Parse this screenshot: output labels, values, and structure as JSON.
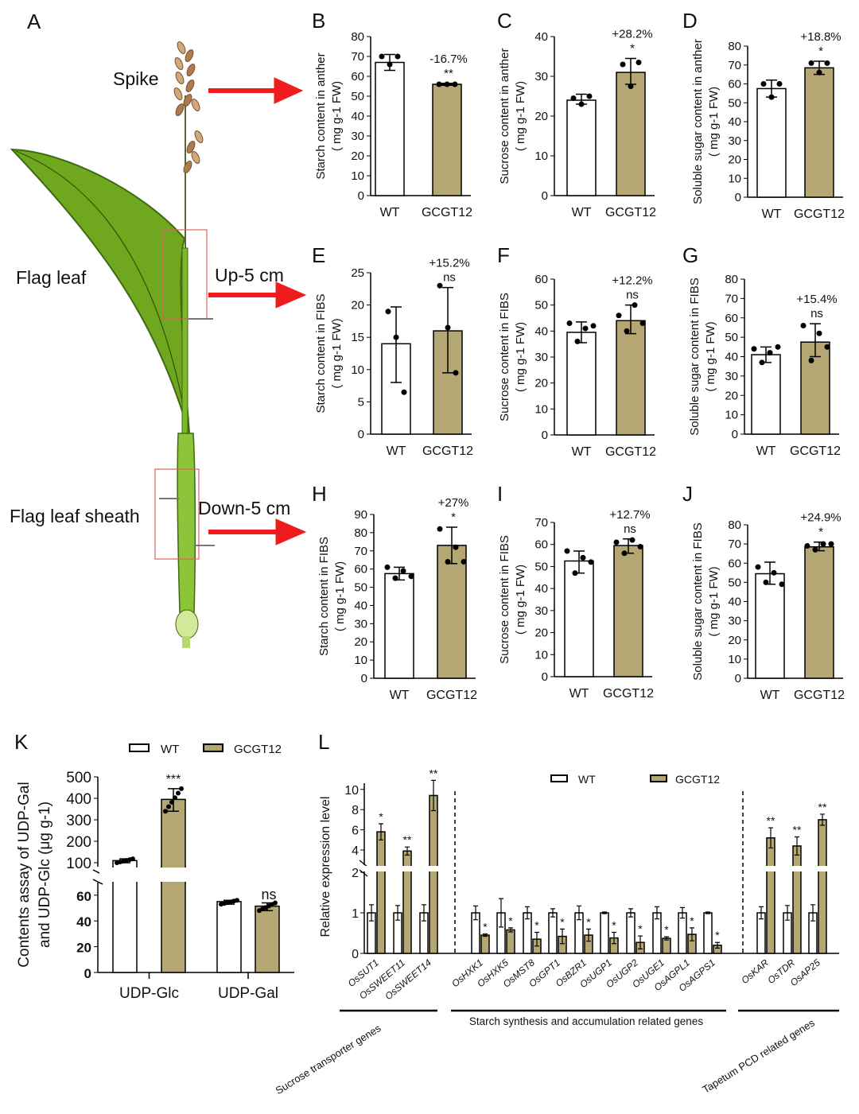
{
  "colors": {
    "wt": "#ffffff",
    "gcgt12": "#b5a773",
    "arrow": "#ee1c1c",
    "box": "#e06060",
    "leaf": "#6fa81e"
  },
  "panel_a": {
    "letter": "A",
    "labels": {
      "spike": "Spike",
      "flag_leaf": "Flag leaf",
      "sheath": "Flag leaf sheath",
      "up": "Up-5 cm",
      "down": "Down-5 cm"
    }
  },
  "chart_data": [
    {
      "id": "B",
      "type": "bar",
      "categories": [
        "WT",
        "GCGT12"
      ],
      "ylabel": "Starch content in anther",
      "yunit": "( mg g-1 FW)",
      "ylim": [
        0,
        80
      ],
      "ystep": 10,
      "values": [
        67,
        56
      ],
      "err": [
        [
          63,
          71
        ],
        [
          55.5,
          56.5
        ]
      ],
      "points": [
        [
          70,
          66,
          70
        ],
        [
          56,
          56,
          56
        ]
      ],
      "pct": "-16.7%",
      "sig": "**"
    },
    {
      "id": "C",
      "type": "bar",
      "categories": [
        "WT",
        "GCGT12"
      ],
      "ylabel": "Sucrose content in anther",
      "yunit": "( mg g-1 FW)",
      "ylim": [
        0,
        40
      ],
      "ystep": 10,
      "values": [
        24,
        31
      ],
      "err": [
        [
          23,
          25.5
        ],
        [
          28,
          34.5
        ]
      ],
      "points": [
        [
          24.5,
          23,
          25
        ],
        [
          33,
          27.5,
          33.5
        ]
      ],
      "pct": "+28.2%",
      "sig": "*"
    },
    {
      "id": "D",
      "type": "bar",
      "categories": [
        "WT",
        "GCGT12"
      ],
      "ylabel": "Soluble sugar content in anther",
      "yunit": "( mg g-1 FW)",
      "ylim": [
        0,
        80
      ],
      "ystep": 10,
      "values": [
        57.5,
        68.5
      ],
      "err": [
        [
          53,
          62
        ],
        [
          65,
          72
        ]
      ],
      "points": [
        [
          60,
          53,
          60
        ],
        [
          71,
          66,
          71
        ]
      ],
      "pct": "+18.8%",
      "sig": "*"
    },
    {
      "id": "E",
      "type": "bar",
      "categories": [
        "WT",
        "GCGT12"
      ],
      "ylabel": "Starch content in FIBS",
      "yunit": "( mg g-1 FW)",
      "ylim": [
        0,
        25
      ],
      "ystep": 5,
      "values": [
        14,
        16
      ],
      "err": [
        [
          8,
          19.7
        ],
        [
          9.5,
          22.7
        ]
      ],
      "points": [
        [
          19,
          15,
          6.5
        ],
        [
          23,
          16.5,
          9.5
        ]
      ],
      "pct": "+15.2%",
      "sig": "ns"
    },
    {
      "id": "F",
      "type": "bar",
      "categories": [
        "WT",
        "GCGT12"
      ],
      "ylabel": "Sucrose content in FIBS",
      "yunit": "( mg g-1 FW)",
      "ylim": [
        0,
        60
      ],
      "ystep": 10,
      "values": [
        39.5,
        44
      ],
      "err": [
        [
          35.5,
          43.5
        ],
        [
          39,
          50
        ]
      ],
      "points": [
        [
          43,
          36,
          41,
          42
        ],
        [
          46,
          40,
          50,
          43
        ]
      ],
      "pct": "+12.2%",
      "sig": "ns"
    },
    {
      "id": "G",
      "type": "bar",
      "categories": [
        "WT",
        "GCGT12"
      ],
      "ylabel": "Soluble sugar content in FIBS",
      "yunit": "( mg g-1 FW)",
      "ylim": [
        0,
        80
      ],
      "ystep": 10,
      "values": [
        41,
        47.5
      ],
      "err": [
        [
          37,
          45
        ],
        [
          40,
          57
        ]
      ],
      "points": [
        [
          44,
          37,
          42,
          45
        ],
        [
          56,
          38,
          52,
          45
        ]
      ],
      "pct": "+15.4%",
      "sig": "ns"
    },
    {
      "id": "H",
      "type": "bar",
      "categories": [
        "WT",
        "GCGT12"
      ],
      "ylabel": "Starch content in FIBS",
      "yunit": "( mg g-1 FW)",
      "ylim": [
        0,
        90
      ],
      "ystep": 10,
      "values": [
        57.5,
        73
      ],
      "err": [
        [
          54,
          61
        ],
        [
          63,
          83
        ]
      ],
      "points": [
        [
          61,
          55,
          59,
          56
        ],
        [
          82,
          64,
          72,
          64
        ]
      ],
      "pct": "+27%",
      "sig": "*"
    },
    {
      "id": "I",
      "type": "bar",
      "categories": [
        "WT",
        "GCGT12"
      ],
      "ylabel": "Sucrose content in FIBS",
      "yunit": "( mg g-1 FW)",
      "ylim": [
        0,
        70
      ],
      "ystep": 10,
      "values": [
        52.5,
        59.5
      ],
      "err": [
        [
          47,
          57
        ],
        [
          56,
          62.5
        ]
      ],
      "points": [
        [
          57,
          47,
          54,
          52
        ],
        [
          61,
          56,
          62,
          59
        ]
      ],
      "pct": "+12.7%",
      "sig": "ns"
    },
    {
      "id": "J",
      "type": "bar",
      "categories": [
        "WT",
        "GCGT12"
      ],
      "ylabel": "Soluble sugar content in FIBS",
      "yunit": "( mg g-1 FW)",
      "ylim": [
        0,
        80
      ],
      "ystep": 10,
      "values": [
        54.5,
        68.5
      ],
      "err": [
        [
          49,
          60.5
        ],
        [
          66.5,
          71
        ]
      ],
      "points": [
        [
          58,
          50,
          55,
          49
        ],
        [
          69,
          67,
          70,
          70
        ]
      ],
      "pct": "+24.9%",
      "sig": "*"
    },
    {
      "id": "K",
      "type": "bar",
      "legend": [
        "WT",
        "GCGT12"
      ],
      "categories": [
        "UDP-Glc",
        "UDP-Gal"
      ],
      "ylabel": [
        "Contents  assay of UDP-Gal",
        "and UDP-Glc (μg g-1)"
      ],
      "yticks_lower": [
        0,
        20,
        40,
        60
      ],
      "yticks_upper": [
        100,
        200,
        300,
        400,
        500
      ],
      "series": [
        {
          "name": "WT",
          "values": [
            110,
            55
          ],
          "err": [
            [
              100,
              118
            ],
            [
              53,
              56
            ]
          ]
        },
        {
          "name": "GCGT12",
          "values": [
            395,
            51.5
          ],
          "err": [
            [
              340,
              445
            ],
            [
              48,
              54
            ]
          ]
        }
      ],
      "sig": [
        "***",
        "ns"
      ]
    },
    {
      "id": "L",
      "type": "bar",
      "legend": [
        "WT",
        "GCGT12"
      ],
      "ylabel": "Relative expression level",
      "yticks_lower": [
        0,
        1,
        2
      ],
      "yticks_upper": [
        4,
        6,
        8,
        10
      ],
      "genes": [
        "OsSUT1",
        "OsSWEET11",
        "OsSWEET14",
        "OsHXK1",
        "OsHXK5",
        "OsMST8",
        "OsGPT1",
        "OsBZR1",
        "OsUGP1",
        "OsUGP2",
        "OsUGE1",
        "OsAGPL1",
        "OsAGPS1",
        "OsKAR",
        "OsTDR",
        "OsAP25"
      ],
      "wt": [
        1,
        1,
        1,
        1,
        1,
        1,
        1,
        1,
        1,
        1,
        1,
        1,
        1,
        1,
        1,
        1
      ],
      "wt_err": [
        0.2,
        0.18,
        0.2,
        0.17,
        0.35,
        0.15,
        0.1,
        0.17,
        0.02,
        0.1,
        0.15,
        0.13,
        0.02,
        0.15,
        0.18,
        0.2
      ],
      "gcgt12": [
        5.8,
        3.9,
        9.4,
        0.45,
        0.58,
        0.35,
        0.42,
        0.45,
        0.38,
        0.27,
        0.37,
        0.47,
        0.2,
        5.2,
        4.4,
        7.0
      ],
      "gcgt12_err": [
        0.8,
        0.4,
        1.5,
        0.03,
        0.05,
        0.17,
        0.18,
        0.15,
        0.14,
        0.16,
        0.04,
        0.16,
        0.07,
        1.0,
        0.9,
        0.55
      ],
      "sig": [
        "*",
        "**",
        "**",
        "*",
        "*",
        "*",
        "*",
        "*",
        "*",
        "*",
        "*",
        "*",
        "*",
        "**",
        "**",
        "**"
      ],
      "groups": [
        "Sucrose transporter genes",
        "Starch synthesis and accumulation related genes",
        "Tapetum PCD related genes"
      ]
    }
  ]
}
